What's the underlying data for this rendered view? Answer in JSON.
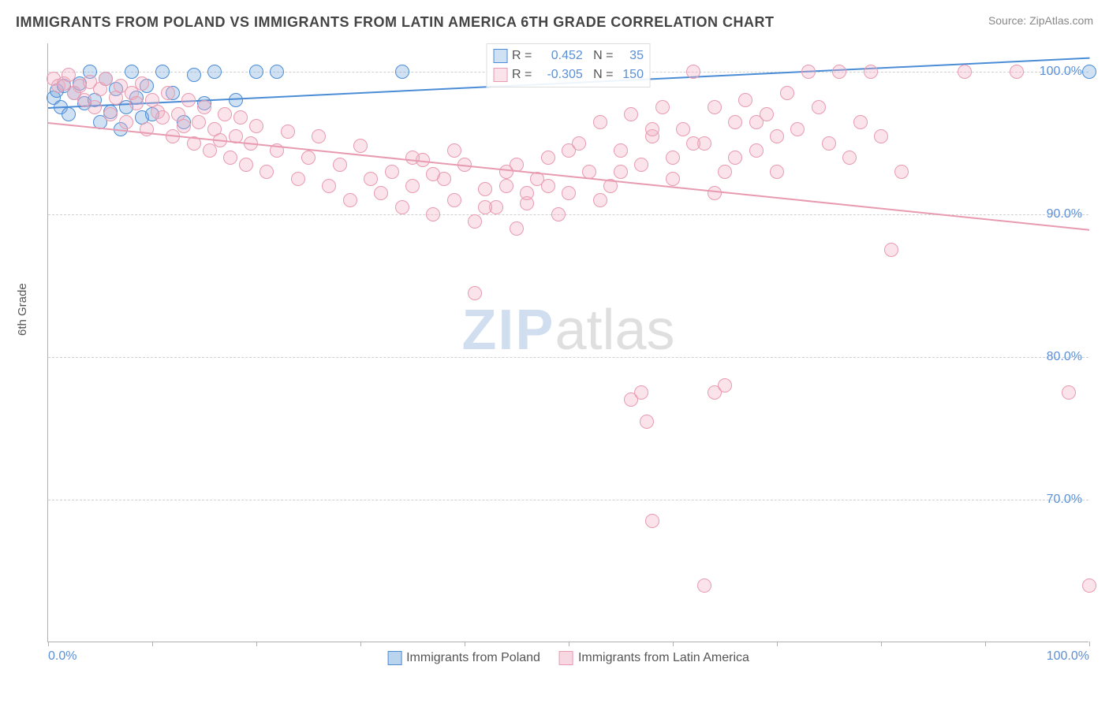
{
  "header": {
    "title": "IMMIGRANTS FROM POLAND VS IMMIGRANTS FROM LATIN AMERICA 6TH GRADE CORRELATION CHART",
    "source_label": "Source:",
    "source_name": "ZipAtlas.com"
  },
  "axes": {
    "y_label": "6th Grade",
    "x_min": 0,
    "x_max": 100,
    "y_min": 60,
    "y_max": 102,
    "y_ticks": [
      70,
      80,
      90,
      100
    ],
    "y_tick_labels": [
      "70.0%",
      "80.0%",
      "90.0%",
      "100.0%"
    ],
    "x_ticks_minor": [
      0,
      10,
      20,
      30,
      40,
      50,
      60,
      70,
      80,
      90,
      100
    ],
    "x_tick_labels": [
      {
        "pos": 0,
        "label": "0.0%"
      },
      {
        "pos": 100,
        "label": "100.0%"
      }
    ]
  },
  "styling": {
    "bg_color": "#ffffff",
    "grid_color": "#d0d0d0",
    "axis_color": "#b0b0b0",
    "tick_label_color": "#5b8fd6",
    "marker_radius": 9,
    "marker_stroke_width": 1.5,
    "marker_fill_opacity": 0.25,
    "trend_line_width": 2
  },
  "series": [
    {
      "name": "Immigrants from Poland",
      "color_stroke": "#4b8cd6",
      "color_fill": "rgba(120,170,220,0.35)",
      "R": "0.452",
      "N": "35",
      "trend": {
        "x1": 0,
        "y1": 97.5,
        "x2": 100,
        "y2": 101
      },
      "points": [
        [
          0.5,
          98.2
        ],
        [
          0.8,
          98.7
        ],
        [
          1.2,
          97.5
        ],
        [
          1.5,
          99.0
        ],
        [
          2,
          97.0
        ],
        [
          2.5,
          98.5
        ],
        [
          3,
          99.2
        ],
        [
          3.5,
          97.8
        ],
        [
          4,
          100
        ],
        [
          4.5,
          98.0
        ],
        [
          5,
          96.5
        ],
        [
          5.5,
          99.5
        ],
        [
          6,
          97.2
        ],
        [
          6.5,
          98.8
        ],
        [
          7,
          96.0
        ],
        [
          7.5,
          97.5
        ],
        [
          8,
          100
        ],
        [
          8.5,
          98.2
        ],
        [
          9,
          96.8
        ],
        [
          9.5,
          99.0
        ],
        [
          10,
          97.0
        ],
        [
          11,
          100
        ],
        [
          12,
          98.5
        ],
        [
          13,
          96.5
        ],
        [
          14,
          99.8
        ],
        [
          15,
          97.8
        ],
        [
          16,
          100
        ],
        [
          18,
          98.0
        ],
        [
          20,
          100
        ],
        [
          22,
          100
        ],
        [
          34,
          100
        ],
        [
          100,
          100
        ]
      ]
    },
    {
      "name": "Immigrants from Latin America",
      "color_stroke": "#e89bb0",
      "color_fill": "rgba(240,175,195,0.35)",
      "R": "-0.305",
      "N": "150",
      "trend": {
        "x1": 0,
        "y1": 96.5,
        "x2": 100,
        "y2": 89
      },
      "points": [
        [
          0.5,
          99.5
        ],
        [
          1,
          99.0
        ],
        [
          1.5,
          99.2
        ],
        [
          2,
          99.8
        ],
        [
          2.5,
          98.5
        ],
        [
          3,
          99.0
        ],
        [
          3.5,
          98.0
        ],
        [
          4,
          99.3
        ],
        [
          4.5,
          97.5
        ],
        [
          5,
          98.8
        ],
        [
          5.5,
          99.5
        ],
        [
          6,
          97.0
        ],
        [
          6.5,
          98.2
        ],
        [
          7,
          99.0
        ],
        [
          7.5,
          96.5
        ],
        [
          8,
          98.5
        ],
        [
          8.5,
          97.8
        ],
        [
          9,
          99.2
        ],
        [
          9.5,
          96.0
        ],
        [
          10,
          98.0
        ],
        [
          10.5,
          97.2
        ],
        [
          11,
          96.8
        ],
        [
          11.5,
          98.5
        ],
        [
          12,
          95.5
        ],
        [
          12.5,
          97.0
        ],
        [
          13,
          96.2
        ],
        [
          13.5,
          98.0
        ],
        [
          14,
          95.0
        ],
        [
          14.5,
          96.5
        ],
        [
          15,
          97.5
        ],
        [
          15.5,
          94.5
        ],
        [
          16,
          96.0
        ],
        [
          16.5,
          95.2
        ],
        [
          17,
          97.0
        ],
        [
          17.5,
          94.0
        ],
        [
          18,
          95.5
        ],
        [
          18.5,
          96.8
        ],
        [
          19,
          93.5
        ],
        [
          19.5,
          95.0
        ],
        [
          20,
          96.2
        ],
        [
          21,
          93.0
        ],
        [
          22,
          94.5
        ],
        [
          23,
          95.8
        ],
        [
          24,
          92.5
        ],
        [
          25,
          94.0
        ],
        [
          26,
          95.5
        ],
        [
          27,
          92.0
        ],
        [
          28,
          93.5
        ],
        [
          29,
          91.0
        ],
        [
          30,
          94.8
        ],
        [
          31,
          92.5
        ],
        [
          32,
          91.5
        ],
        [
          33,
          93.0
        ],
        [
          34,
          90.5
        ],
        [
          35,
          92.0
        ],
        [
          36,
          93.8
        ],
        [
          37,
          90.0
        ],
        [
          38,
          92.5
        ],
        [
          39,
          91.0
        ],
        [
          40,
          93.5
        ],
        [
          41,
          89.5
        ],
        [
          42,
          91.8
        ],
        [
          43,
          90.5
        ],
        [
          44,
          92.0
        ],
        [
          45,
          89.0
        ],
        [
          46,
          90.8
        ],
        [
          47,
          92.5
        ],
        [
          48,
          94.0
        ],
        [
          49,
          90.0
        ],
        [
          50,
          91.5
        ],
        [
          51,
          95.0
        ],
        [
          52,
          93.0
        ],
        [
          53,
          96.5
        ],
        [
          54,
          92.0
        ],
        [
          55,
          94.5
        ],
        [
          56,
          97.0
        ],
        [
          57,
          93.5
        ],
        [
          58,
          95.5
        ],
        [
          59,
          97.5
        ],
        [
          60,
          94.0
        ],
        [
          61,
          96.0
        ],
        [
          62,
          100
        ],
        [
          63,
          95.0
        ],
        [
          64,
          97.5
        ],
        [
          65,
          93.0
        ],
        [
          66,
          96.5
        ],
        [
          67,
          98.0
        ],
        [
          68,
          94.5
        ],
        [
          69,
          97.0
        ],
        [
          70,
          95.5
        ],
        [
          71,
          98.5
        ],
        [
          72,
          96.0
        ],
        [
          73,
          100
        ],
        [
          74,
          97.5
        ],
        [
          75,
          95.0
        ],
        [
          76,
          100
        ],
        [
          77,
          94.0
        ],
        [
          78,
          96.5
        ],
        [
          79,
          100
        ],
        [
          80,
          95.5
        ],
        [
          81,
          87.5
        ],
        [
          82,
          93.0
        ],
        [
          41,
          84.5
        ],
        [
          56,
          77.0
        ],
        [
          57,
          77.5
        ],
        [
          57.5,
          75.5
        ],
        [
          58,
          68.5
        ],
        [
          63,
          64.0
        ],
        [
          64,
          77.5
        ],
        [
          65,
          78.0
        ],
        [
          98,
          77.5
        ],
        [
          100,
          64.0
        ],
        [
          93,
          100
        ],
        [
          88,
          100
        ],
        [
          45,
          93.5
        ],
        [
          48,
          92.0
        ],
        [
          50,
          94.5
        ],
        [
          53,
          91.0
        ],
        [
          55,
          93.0
        ],
        [
          58,
          96.0
        ],
        [
          60,
          92.5
        ],
        [
          62,
          95.0
        ],
        [
          64,
          91.5
        ],
        [
          66,
          94.0
        ],
        [
          68,
          96.5
        ],
        [
          70,
          93.0
        ],
        [
          35,
          94.0
        ],
        [
          37,
          92.8
        ],
        [
          39,
          94.5
        ],
        [
          42,
          90.5
        ],
        [
          44,
          93.0
        ],
        [
          46,
          91.5
        ]
      ]
    }
  ],
  "legend_bottom": {
    "items": [
      {
        "swatch_fill": "rgba(120,170,220,0.5)",
        "swatch_stroke": "#4b8cd6",
        "label": "Immigrants from Poland"
      },
      {
        "swatch_fill": "rgba(240,175,195,0.5)",
        "swatch_stroke": "#e89bb0",
        "label": "Immigrants from Latin America"
      }
    ]
  },
  "watermark": {
    "zip": "ZIP",
    "atlas": "atlas"
  },
  "legend_top_labels": {
    "R_prefix": "R = ",
    "N_prefix": "N = "
  }
}
